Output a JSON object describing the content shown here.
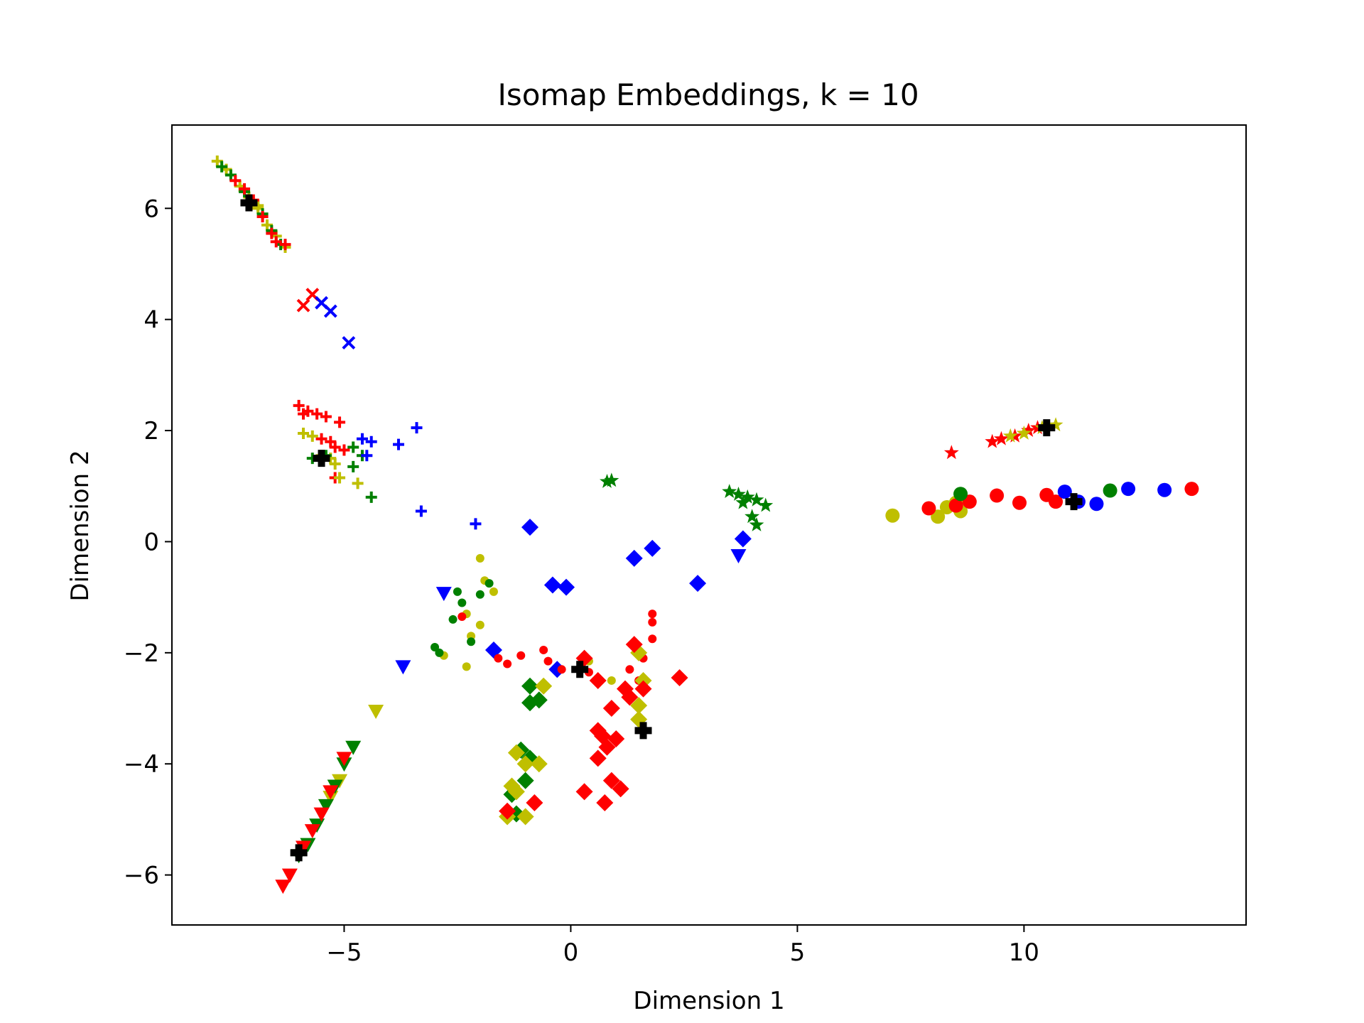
{
  "chart_data": {
    "type": "scatter",
    "title": "Isomap Embeddings, k = 10",
    "xlabel": "Dimension 1",
    "ylabel": "Dimension 2",
    "xlim": [
      -8.8,
      14.9
    ],
    "ylim": [
      -6.9,
      7.5
    ],
    "xticks": [
      -5,
      0,
      5,
      10
    ],
    "yticks": [
      -6,
      -4,
      -2,
      0,
      2,
      4,
      6
    ],
    "grid": false,
    "colors": {
      "red": "#ff0000",
      "green": "#008000",
      "blue": "#0000ff",
      "yellow": "#bfbf00",
      "black": "#000000"
    },
    "series": [
      {
        "marker": "plus",
        "color": "yellow",
        "points": [
          [
            -7.8,
            6.85
          ],
          [
            -7.6,
            6.7
          ],
          [
            -7.3,
            6.4
          ],
          [
            -7.1,
            6.2
          ],
          [
            -6.9,
            6.0
          ],
          [
            -6.7,
            5.7
          ],
          [
            -6.5,
            5.5
          ],
          [
            -6.3,
            5.3
          ],
          [
            -6.9,
            6.05
          ]
        ]
      },
      {
        "marker": "plus",
        "color": "green",
        "points": [
          [
            -7.7,
            6.75
          ],
          [
            -7.5,
            6.6
          ],
          [
            -7.2,
            6.3
          ],
          [
            -6.8,
            5.9
          ],
          [
            -6.6,
            5.6
          ],
          [
            -6.4,
            5.35
          ]
        ]
      },
      {
        "marker": "plus",
        "color": "red",
        "points": [
          [
            -7.4,
            6.5
          ],
          [
            -7.2,
            6.35
          ],
          [
            -7.0,
            6.15
          ],
          [
            -6.8,
            5.85
          ],
          [
            -6.6,
            5.55
          ],
          [
            -6.5,
            5.4
          ],
          [
            -6.3,
            5.35
          ]
        ]
      },
      {
        "marker": "x",
        "color": "red",
        "points": [
          [
            -5.7,
            4.45
          ],
          [
            -5.9,
            4.25
          ]
        ]
      },
      {
        "marker": "x",
        "color": "blue",
        "points": [
          [
            -5.5,
            4.3
          ],
          [
            -5.3,
            4.15
          ],
          [
            -4.9,
            3.58
          ]
        ]
      },
      {
        "marker": "plus",
        "color": "red",
        "points": [
          [
            -6.0,
            2.45
          ],
          [
            -5.8,
            2.35
          ],
          [
            -5.6,
            2.3
          ],
          [
            -5.4,
            2.25
          ],
          [
            -5.1,
            2.15
          ],
          [
            -5.9,
            2.3
          ],
          [
            -5.5,
            1.85
          ],
          [
            -5.3,
            1.8
          ],
          [
            -5.2,
            1.7
          ],
          [
            -5.0,
            1.65
          ],
          [
            -5.2,
            1.15
          ]
        ]
      },
      {
        "marker": "plus",
        "color": "yellow",
        "points": [
          [
            -5.9,
            1.95
          ],
          [
            -5.7,
            1.9
          ],
          [
            -5.5,
            1.55
          ],
          [
            -5.3,
            1.5
          ],
          [
            -5.2,
            1.4
          ],
          [
            -5.1,
            1.15
          ],
          [
            -4.7,
            1.05
          ]
        ]
      },
      {
        "marker": "plus",
        "color": "green",
        "points": [
          [
            -5.7,
            1.5
          ],
          [
            -5.4,
            1.55
          ],
          [
            -4.8,
            1.7
          ],
          [
            -4.6,
            1.55
          ],
          [
            -4.8,
            1.35
          ],
          [
            -4.4,
            0.8
          ]
        ]
      },
      {
        "marker": "plus",
        "color": "blue",
        "points": [
          [
            -4.6,
            1.85
          ],
          [
            -4.4,
            1.8
          ],
          [
            -4.5,
            1.55
          ],
          [
            -3.8,
            1.75
          ],
          [
            -3.4,
            2.05
          ],
          [
            -3.3,
            0.55
          ],
          [
            -2.1,
            0.32
          ]
        ]
      },
      {
        "marker": "star",
        "color": "red",
        "points": [
          [
            8.4,
            1.6
          ],
          [
            9.3,
            1.8
          ],
          [
            9.5,
            1.85
          ],
          [
            9.8,
            1.9
          ],
          [
            10.1,
            2.0
          ],
          [
            10.3,
            2.05
          ]
        ]
      },
      {
        "marker": "star",
        "color": "yellow",
        "points": [
          [
            9.7,
            1.9
          ],
          [
            10.0,
            1.95
          ],
          [
            10.4,
            2.05
          ],
          [
            10.7,
            2.1
          ]
        ]
      },
      {
        "marker": "star",
        "color": "green",
        "points": [
          [
            0.8,
            1.08
          ],
          [
            0.9,
            1.1
          ],
          [
            3.5,
            0.9
          ],
          [
            3.7,
            0.85
          ],
          [
            3.9,
            0.8
          ],
          [
            4.1,
            0.75
          ],
          [
            4.3,
            0.65
          ],
          [
            3.8,
            0.7
          ],
          [
            4.0,
            0.45
          ],
          [
            4.1,
            0.3
          ]
        ]
      },
      {
        "marker": "circle",
        "color": "yellow",
        "points": [
          [
            7.1,
            0.47
          ],
          [
            8.1,
            0.45
          ],
          [
            8.3,
            0.62
          ],
          [
            8.6,
            0.55
          ],
          [
            8.5,
            0.7
          ]
        ]
      },
      {
        "marker": "circle",
        "color": "red",
        "points": [
          [
            7.9,
            0.6
          ],
          [
            8.5,
            0.65
          ],
          [
            8.8,
            0.72
          ],
          [
            9.4,
            0.83
          ],
          [
            9.9,
            0.7
          ],
          [
            10.5,
            0.84
          ],
          [
            10.7,
            0.72
          ],
          [
            13.7,
            0.95
          ]
        ]
      },
      {
        "marker": "circle",
        "color": "green",
        "points": [
          [
            8.6,
            0.86
          ],
          [
            11.9,
            0.92
          ]
        ]
      },
      {
        "marker": "circle",
        "color": "blue",
        "points": [
          [
            10.9,
            0.9
          ],
          [
            11.2,
            0.72
          ],
          [
            11.6,
            0.68
          ],
          [
            12.3,
            0.95
          ],
          [
            13.1,
            0.93
          ]
        ]
      },
      {
        "marker": "diamond",
        "color": "blue",
        "points": [
          [
            -0.9,
            0.26
          ],
          [
            -0.4,
            -0.78
          ],
          [
            -0.1,
            -0.82
          ],
          [
            -1.7,
            -1.95
          ],
          [
            -0.3,
            -2.3
          ],
          [
            1.4,
            -0.3
          ],
          [
            1.8,
            -0.12
          ],
          [
            2.8,
            -0.75
          ],
          [
            3.8,
            0.05
          ]
        ]
      },
      {
        "marker": "triangle-down",
        "color": "blue",
        "points": [
          [
            -2.8,
            -0.93
          ],
          [
            -3.7,
            -2.25
          ],
          [
            3.7,
            -0.25
          ]
        ]
      },
      {
        "marker": "triangle-down",
        "color": "yellow",
        "points": [
          [
            -4.3,
            -3.05
          ],
          [
            -5.1,
            -4.3
          ],
          [
            -5.3,
            -4.6
          ]
        ]
      },
      {
        "marker": "triangle-down",
        "color": "green",
        "points": [
          [
            -4.8,
            -3.7
          ],
          [
            -5.0,
            -4.0
          ],
          [
            -5.2,
            -4.4
          ],
          [
            -5.4,
            -4.75
          ],
          [
            -5.6,
            -5.1
          ],
          [
            -5.8,
            -5.45
          ],
          [
            -6.0,
            -5.65
          ]
        ]
      },
      {
        "marker": "triangle-down",
        "color": "red",
        "points": [
          [
            -5.0,
            -3.9
          ],
          [
            -5.3,
            -4.5
          ],
          [
            -5.5,
            -4.9
          ],
          [
            -5.7,
            -5.2
          ],
          [
            -5.9,
            -5.5
          ],
          [
            -6.2,
            -6.0
          ],
          [
            -6.35,
            -6.2
          ]
        ]
      },
      {
        "marker": "dot",
        "color": "yellow",
        "points": [
          [
            -2.0,
            -0.3
          ],
          [
            -1.9,
            -0.7
          ],
          [
            -1.7,
            -0.9
          ],
          [
            -2.3,
            -1.3
          ],
          [
            -2.2,
            -1.7
          ],
          [
            -2.0,
            -1.5
          ],
          [
            -2.3,
            -2.25
          ],
          [
            -2.8,
            -2.05
          ],
          [
            0.9,
            -2.5
          ],
          [
            0.4,
            -2.15
          ]
        ]
      },
      {
        "marker": "dot",
        "color": "green",
        "points": [
          [
            -2.5,
            -0.9
          ],
          [
            -2.4,
            -1.1
          ],
          [
            -2.6,
            -1.4
          ],
          [
            -3.0,
            -1.9
          ],
          [
            -2.9,
            -2.0
          ],
          [
            -2.2,
            -1.8
          ],
          [
            -2.0,
            -0.95
          ],
          [
            -1.8,
            -0.75
          ]
        ]
      },
      {
        "marker": "dot",
        "color": "red",
        "points": [
          [
            -2.4,
            -1.35
          ],
          [
            -1.6,
            -2.1
          ],
          [
            -1.4,
            -2.2
          ],
          [
            -1.1,
            -2.05
          ],
          [
            -0.6,
            -1.95
          ],
          [
            -0.5,
            -2.15
          ],
          [
            -0.2,
            -2.3
          ],
          [
            0.4,
            -2.35
          ],
          [
            1.3,
            -2.3
          ],
          [
            1.6,
            -2.1
          ],
          [
            1.8,
            -1.75
          ],
          [
            1.8,
            -1.45
          ],
          [
            1.8,
            -1.3
          ],
          [
            1.5,
            -2.5
          ]
        ]
      },
      {
        "marker": "diamond",
        "color": "green",
        "points": [
          [
            -0.9,
            -2.6
          ],
          [
            -0.9,
            -2.9
          ],
          [
            -0.7,
            -2.85
          ],
          [
            -1.1,
            -3.75
          ],
          [
            -0.9,
            -3.9
          ],
          [
            -1.3,
            -4.55
          ],
          [
            -1.2,
            -4.9
          ],
          [
            -1.0,
            -4.3
          ]
        ]
      },
      {
        "marker": "diamond",
        "color": "yellow",
        "points": [
          [
            -0.6,
            -2.6
          ],
          [
            1.5,
            -2.0
          ],
          [
            1.6,
            -2.5
          ],
          [
            1.5,
            -2.95
          ],
          [
            1.5,
            -3.2
          ],
          [
            -1.2,
            -3.8
          ],
          [
            -1.0,
            -4.0
          ],
          [
            -0.7,
            -4.0
          ],
          [
            -1.3,
            -4.4
          ],
          [
            -1.2,
            -4.5
          ],
          [
            -1.4,
            -4.95
          ],
          [
            -1.0,
            -4.95
          ]
        ]
      },
      {
        "marker": "diamond",
        "color": "red",
        "points": [
          [
            0.3,
            -2.1
          ],
          [
            0.6,
            -2.5
          ],
          [
            0.9,
            -3.0
          ],
          [
            1.2,
            -2.65
          ],
          [
            1.3,
            -2.8
          ],
          [
            1.6,
            -2.65
          ],
          [
            1.4,
            -1.85
          ],
          [
            2.4,
            -2.45
          ],
          [
            0.6,
            -3.4
          ],
          [
            0.7,
            -3.5
          ],
          [
            0.8,
            -3.7
          ],
          [
            1.0,
            -3.55
          ],
          [
            0.6,
            -3.9
          ],
          [
            0.9,
            -4.3
          ],
          [
            1.1,
            -4.45
          ],
          [
            0.75,
            -4.7
          ],
          [
            0.3,
            -4.5
          ],
          [
            -0.8,
            -4.7
          ],
          [
            -1.4,
            -4.85
          ]
        ]
      },
      {
        "marker": "plus-bold",
        "color": "black",
        "points": [
          [
            -7.1,
            6.1
          ],
          [
            -5.5,
            1.5
          ],
          [
            10.5,
            2.05
          ],
          [
            11.1,
            0.72
          ],
          [
            0.2,
            -2.3
          ],
          [
            1.6,
            -3.4
          ],
          [
            -6.0,
            -5.6
          ]
        ]
      }
    ]
  }
}
